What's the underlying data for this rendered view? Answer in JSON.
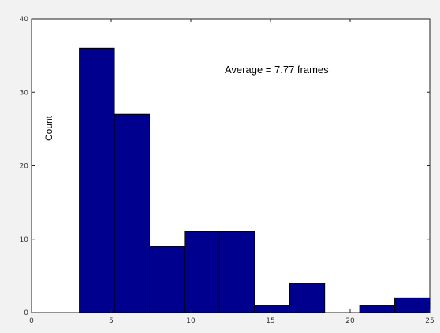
{
  "chart_data": {
    "type": "bar",
    "title": "",
    "xlabel": "",
    "ylabel": "Count",
    "annotation": "Average = 7.77 frames",
    "xlim": [
      0,
      25
    ],
    "ylim": [
      0,
      40
    ],
    "xticks": [
      "0",
      "5",
      "10",
      "15",
      "20",
      "25"
    ],
    "yticks": [
      "0",
      "10",
      "20",
      "30",
      "40"
    ],
    "bins": [
      {
        "start": 3.0,
        "end": 5.2,
        "value": 36
      },
      {
        "start": 5.2,
        "end": 7.4,
        "value": 27
      },
      {
        "start": 7.4,
        "end": 9.6,
        "value": 9
      },
      {
        "start": 9.6,
        "end": 11.8,
        "value": 11
      },
      {
        "start": 11.8,
        "end": 14.0,
        "value": 11
      },
      {
        "start": 14.0,
        "end": 16.2,
        "value": 1
      },
      {
        "start": 16.2,
        "end": 18.4,
        "value": 4
      },
      {
        "start": 18.4,
        "end": 20.6,
        "value": 0
      },
      {
        "start": 20.6,
        "end": 22.8,
        "value": 1
      },
      {
        "start": 22.8,
        "end": 25.0,
        "value": 2
      }
    ],
    "bar_color": "#00008f",
    "grid": false
  }
}
